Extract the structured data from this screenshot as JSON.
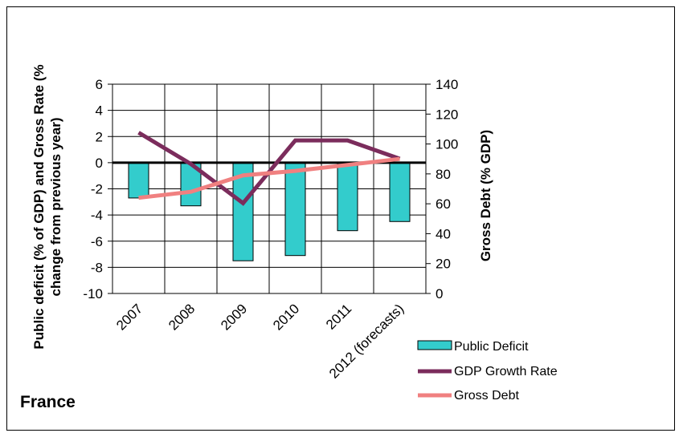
{
  "chart_data": {
    "type": "bar",
    "title": "France",
    "categories": [
      "2007",
      "2008",
      "2009",
      "2010",
      "2011",
      "2012 (forecasts)"
    ],
    "series": [
      {
        "name": "Public Deficit",
        "type": "bar",
        "axis": "left",
        "color": "#33CCCC",
        "values": [
          -2.7,
          -3.3,
          -7.5,
          -7.1,
          -5.2,
          -4.5
        ]
      },
      {
        "name": "GDP Growth Rate",
        "type": "line",
        "axis": "left",
        "color": "#7B2C5C",
        "values": [
          2.3,
          -0.1,
          -3.1,
          1.7,
          1.7,
          0.3
        ]
      },
      {
        "name": "Gross Debt",
        "type": "line",
        "axis": "right",
        "color": "#F08080",
        "values": [
          64,
          68,
          79,
          82,
          86,
          90
        ]
      }
    ],
    "ylabel": "Public deficit (% of GDP) and Gross Rate (% change from previous year)",
    "ylabel_line1": "Public deficit (% of GDP) and Gross Rate (%",
    "ylabel_line2": "change from previous year)",
    "y2label": "Gross Debt (% GDP)",
    "ylim": [
      -10,
      6
    ],
    "y2lim": [
      0,
      140
    ],
    "yticks": [
      "6",
      "4",
      "2",
      "0",
      "-2",
      "-4",
      "-6",
      "-8",
      "-10"
    ],
    "y2ticks": [
      "140",
      "120",
      "100",
      "80",
      "60",
      "40",
      "20",
      "0"
    ],
    "grid": true,
    "legend_position": "bottom-right"
  }
}
